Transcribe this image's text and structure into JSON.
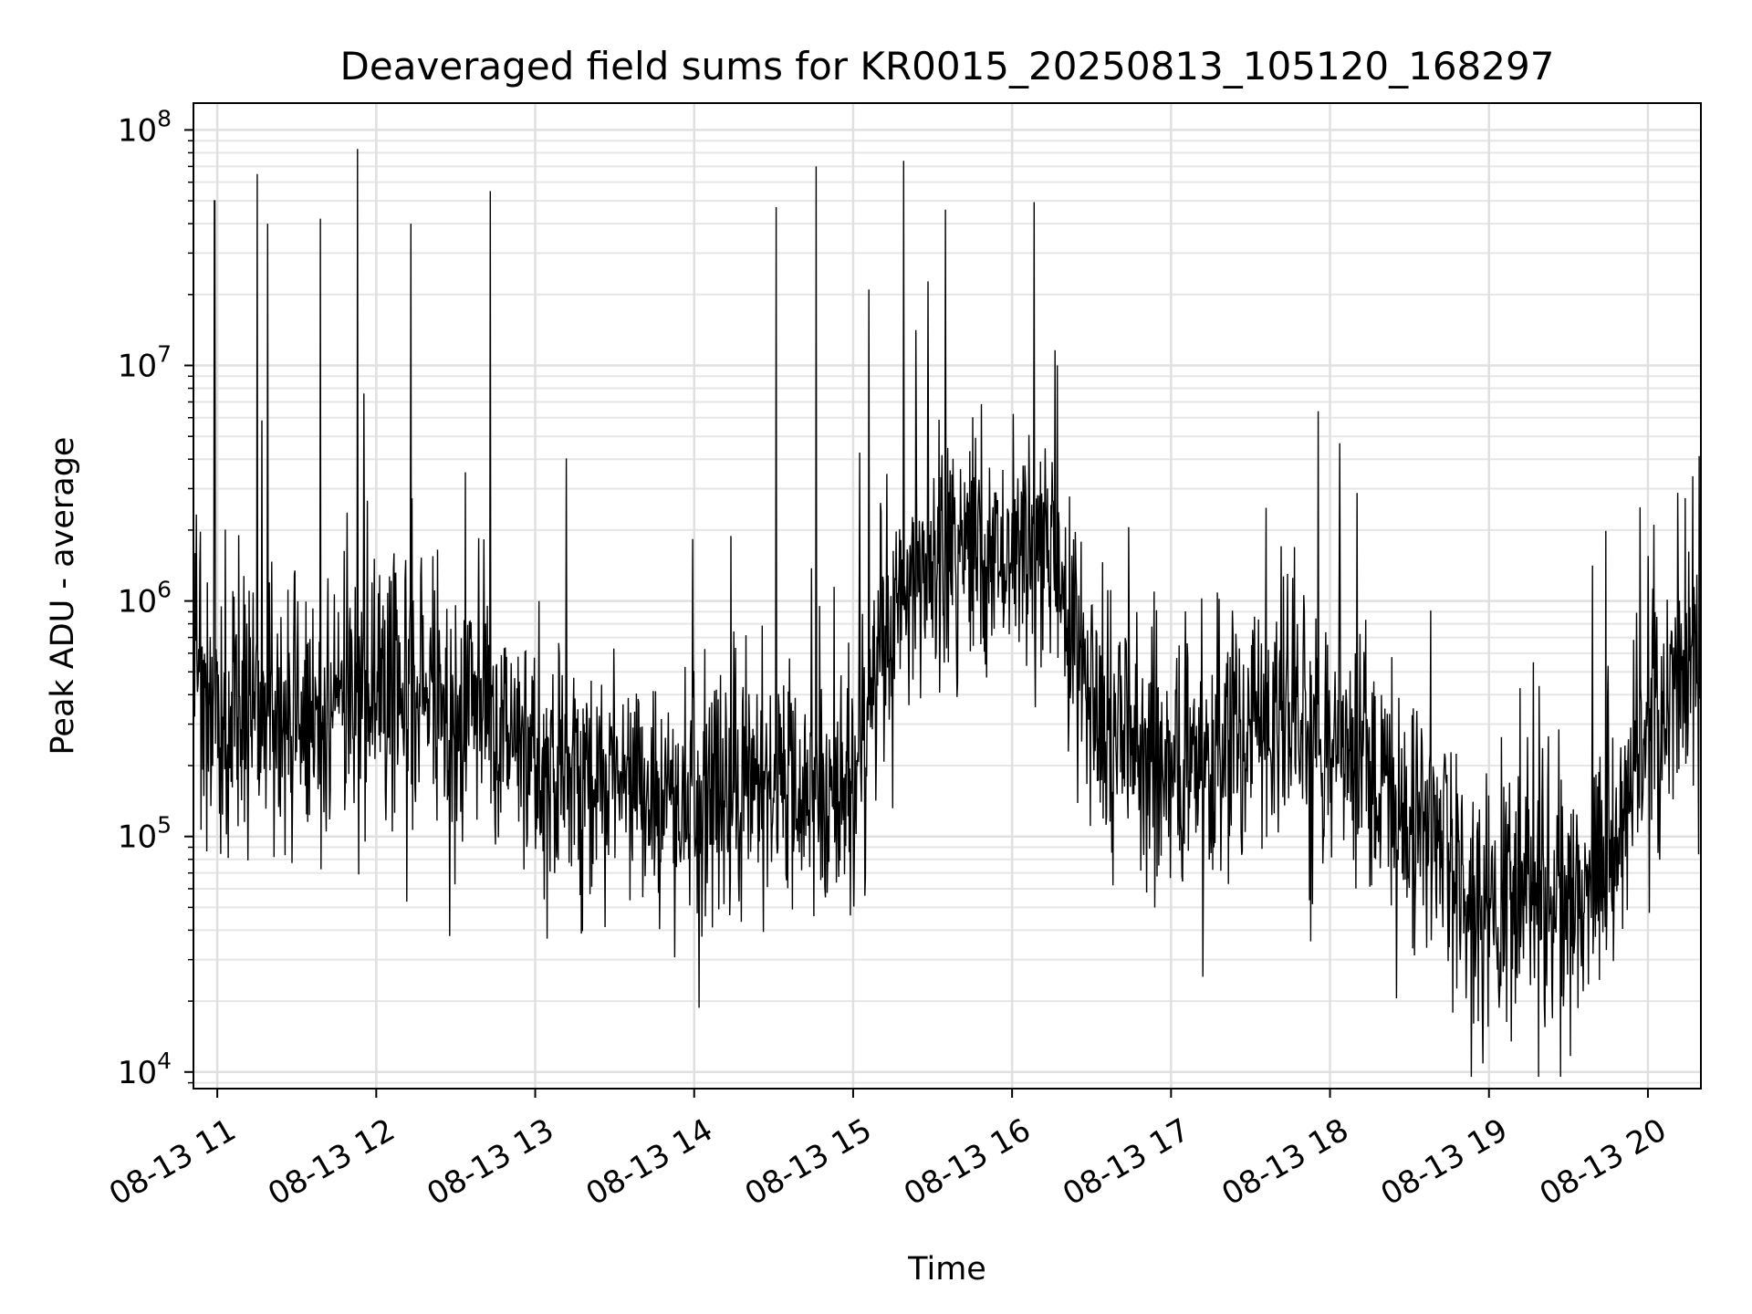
{
  "chart_data": {
    "type": "line",
    "title": "Deaveraged field sums for KR0015_20250813_105120_168297",
    "xlabel": "Time",
    "ylabel": "Peak ADU - average",
    "x_ticks": [
      "08-13 11",
      "08-13 12",
      "08-13 13",
      "08-13 14",
      "08-13 15",
      "08-13 16",
      "08-13 17",
      "08-13 18",
      "08-13 19",
      "08-13 20"
    ],
    "y_ticks": [
      {
        "base": "10",
        "exp": "4"
      },
      {
        "base": "10",
        "exp": "5"
      },
      {
        "base": "10",
        "exp": "6"
      },
      {
        "base": "10",
        "exp": "7"
      },
      {
        "base": "10",
        "exp": "8"
      }
    ],
    "y_scale": "log",
    "xlim": [
      "2025-08-13 10:51",
      "2025-08-13 20:20"
    ],
    "ylim": [
      8500,
      130000000
    ],
    "grid": true,
    "series": [
      {
        "color": "#000000",
        "x": [
          "2025-08-13 10:51",
          "2025-08-13 11:00",
          "2025-08-13 11:15",
          "2025-08-13 11:30",
          "2025-08-13 11:45",
          "2025-08-13 12:00",
          "2025-08-13 12:15",
          "2025-08-13 12:30",
          "2025-08-13 12:45",
          "2025-08-13 13:00",
          "2025-08-13 13:15",
          "2025-08-13 13:30",
          "2025-08-13 13:45",
          "2025-08-13 14:00",
          "2025-08-13 14:15",
          "2025-08-13 14:30",
          "2025-08-13 14:45",
          "2025-08-13 15:00",
          "2025-08-13 15:15",
          "2025-08-13 15:30",
          "2025-08-13 15:45",
          "2025-08-13 16:00",
          "2025-08-13 16:15",
          "2025-08-13 16:30",
          "2025-08-13 16:45",
          "2025-08-13 17:00",
          "2025-08-13 17:15",
          "2025-08-13 17:30",
          "2025-08-13 17:45",
          "2025-08-13 18:00",
          "2025-08-13 18:15",
          "2025-08-13 18:30",
          "2025-08-13 18:45",
          "2025-08-13 19:00",
          "2025-08-13 19:15",
          "2025-08-13 19:30",
          "2025-08-13 19:45",
          "2025-08-13 20:00",
          "2025-08-13 20:15",
          "2025-08-13 20:20"
        ],
        "y": [
          400000,
          350000,
          330000,
          320000,
          350000,
          400000,
          380000,
          360000,
          340000,
          250000,
          200000,
          170000,
          160000,
          150000,
          160000,
          180000,
          160000,
          150000,
          1000000,
          1500000,
          1800000,
          1700000,
          1500000,
          400000,
          250000,
          200000,
          220000,
          350000,
          300000,
          250000,
          200000,
          130000,
          70000,
          45000,
          50000,
          60000,
          70000,
          300000,
          450000,
          550000
        ]
      }
    ],
    "spikes": [
      {
        "x": "2025-08-13 10:59",
        "y": 50000000
      },
      {
        "x": "2025-08-13 11:15",
        "y": 65000000
      },
      {
        "x": "2025-08-13 11:19",
        "y": 40000000
      },
      {
        "x": "2025-08-13 11:39",
        "y": 42000000
      },
      {
        "x": "2025-08-13 11:53",
        "y": 83000000
      },
      {
        "x": "2025-08-13 12:13",
        "y": 40000000
      },
      {
        "x": "2025-08-13 12:43",
        "y": 55000000
      },
      {
        "x": "2025-08-13 14:31",
        "y": 47000000
      },
      {
        "x": "2025-08-13 14:46",
        "y": 70000000
      },
      {
        "x": "2025-08-13 15:06",
        "y": 21000000
      },
      {
        "x": "2025-08-13 16:17",
        "y": 10000000
      },
      {
        "x": "2025-08-13 19:57",
        "y": 2500000
      }
    ]
  }
}
